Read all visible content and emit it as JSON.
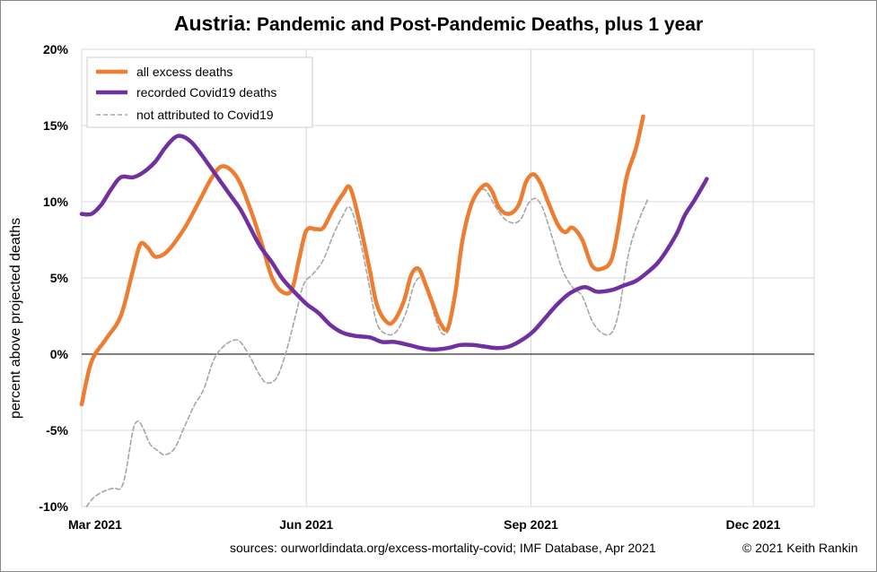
{
  "title": {
    "country": "Austria",
    "rest": ": Pandemic and Post-Pandemic Deaths, plus 1 year"
  },
  "footer": {
    "sources": "sources:  ourworldindata.org/excess-mortality-covid;  IMF Database, Apr 2021",
    "copyright": "© 2021 Keith Rankin"
  },
  "chart_data": {
    "type": "line",
    "ylabel": "percent above projected deaths",
    "ylim": [
      -10,
      20
    ],
    "yticks": [
      {
        "value": 20,
        "label": "20%"
      },
      {
        "value": 15,
        "label": "15%"
      },
      {
        "value": 10,
        "label": "10%"
      },
      {
        "value": 5,
        "label": "5%"
      },
      {
        "value": 0,
        "label": "0%"
      },
      {
        "value": -5,
        "label": "-5%"
      },
      {
        "value": -10,
        "label": "-10%"
      }
    ],
    "xlim": [
      0,
      300
    ],
    "xticks": [
      {
        "value": 0,
        "label": "Mar 2021"
      },
      {
        "value": 92,
        "label": "Jun 2021"
      },
      {
        "value": 184,
        "label": "Sep 2021"
      },
      {
        "value": 275,
        "label": "Dec 2021"
      }
    ],
    "grid": true,
    "legend_position": "top-left",
    "series": [
      {
        "name": "all excess deaths",
        "color": "#ED7D31",
        "style": "solid",
        "points": [
          [
            0,
            -3.3
          ],
          [
            4,
            -0.5
          ],
          [
            10,
            1
          ],
          [
            16,
            2.5
          ],
          [
            21,
            5.5
          ],
          [
            24,
            7.2
          ],
          [
            27,
            7
          ],
          [
            30,
            6.4
          ],
          [
            34,
            6.6
          ],
          [
            38,
            7.3
          ],
          [
            43,
            8.5
          ],
          [
            49,
            10.3
          ],
          [
            53,
            11.5
          ],
          [
            57,
            12.3
          ],
          [
            61,
            12.1
          ],
          [
            65,
            11.2
          ],
          [
            70,
            9.1
          ],
          [
            74,
            7.1
          ],
          [
            78,
            5
          ],
          [
            82,
            4.1
          ],
          [
            86,
            4.2
          ],
          [
            89,
            6.2
          ],
          [
            92,
            8.1
          ],
          [
            96,
            8.2
          ],
          [
            99,
            8.3
          ],
          [
            103,
            9.5
          ],
          [
            107,
            10.5
          ],
          [
            110,
            10.9
          ],
          [
            114,
            8.5
          ],
          [
            118,
            5.5
          ],
          [
            121,
            3.2
          ],
          [
            125,
            2.1
          ],
          [
            128,
            2.2
          ],
          [
            132,
            3.5
          ],
          [
            135,
            5.2
          ],
          [
            138,
            5.6
          ],
          [
            141,
            4.5
          ],
          [
            144,
            3.2
          ],
          [
            147,
            2
          ],
          [
            150,
            1.7
          ],
          [
            153,
            4
          ],
          [
            156,
            7.5
          ],
          [
            160,
            10
          ],
          [
            165,
            11.1
          ],
          [
            168,
            10.7
          ],
          [
            171,
            9.6
          ],
          [
            175,
            9.2
          ],
          [
            179,
            9.8
          ],
          [
            182,
            11.3
          ],
          [
            185,
            11.8
          ],
          [
            188,
            11.2
          ],
          [
            191,
            10
          ],
          [
            195,
            8.5
          ],
          [
            198,
            8
          ],
          [
            201,
            8.3
          ],
          [
            205,
            7.5
          ],
          [
            209,
            5.8
          ],
          [
            213,
            5.6
          ],
          [
            217,
            6.2
          ],
          [
            220,
            8.5
          ],
          [
            223,
            11.5
          ],
          [
            227,
            13.5
          ],
          [
            230,
            15.6
          ]
        ]
      },
      {
        "name": "recorded Covid19 deaths",
        "color": "#7030A0",
        "style": "solid",
        "points": [
          [
            0,
            9.2
          ],
          [
            4,
            9.2
          ],
          [
            8,
            9.8
          ],
          [
            12,
            10.8
          ],
          [
            16,
            11.6
          ],
          [
            21,
            11.6
          ],
          [
            25,
            11.9
          ],
          [
            30,
            12.6
          ],
          [
            34,
            13.5
          ],
          [
            38,
            14.2
          ],
          [
            41,
            14.3
          ],
          [
            45,
            13.9
          ],
          [
            49,
            13.1
          ],
          [
            53,
            12.2
          ],
          [
            57,
            11.3
          ],
          [
            61,
            10.4
          ],
          [
            65,
            9.5
          ],
          [
            69,
            8.3
          ],
          [
            73,
            7.1
          ],
          [
            78,
            6
          ],
          [
            82,
            5
          ],
          [
            87,
            4.1
          ],
          [
            92,
            3.3
          ],
          [
            97,
            2.7
          ],
          [
            102,
            1.9
          ],
          [
            107,
            1.4
          ],
          [
            112,
            1.2
          ],
          [
            118,
            1.1
          ],
          [
            123,
            0.8
          ],
          [
            128,
            0.8
          ],
          [
            134,
            0.6
          ],
          [
            139,
            0.4
          ],
          [
            144,
            0.3
          ],
          [
            150,
            0.4
          ],
          [
            155,
            0.6
          ],
          [
            160,
            0.6
          ],
          [
            165,
            0.5
          ],
          [
            170,
            0.4
          ],
          [
            175,
            0.5
          ],
          [
            180,
            0.9
          ],
          [
            185,
            1.5
          ],
          [
            190,
            2.4
          ],
          [
            195,
            3.3
          ],
          [
            200,
            4
          ],
          [
            206,
            4.4
          ],
          [
            211,
            4.1
          ],
          [
            217,
            4.2
          ],
          [
            222,
            4.5
          ],
          [
            227,
            4.8
          ],
          [
            232,
            5.4
          ],
          [
            236,
            6
          ],
          [
            240,
            6.9
          ],
          [
            244,
            8
          ],
          [
            247,
            9.1
          ],
          [
            251,
            10.1
          ],
          [
            255,
            11.2
          ],
          [
            256,
            11.5
          ]
        ]
      },
      {
        "name": "not attributed to Covid19",
        "color": "#A6A6A6",
        "style": "dashed",
        "points": [
          [
            2,
            -10
          ],
          [
            5,
            -9.4
          ],
          [
            9,
            -9
          ],
          [
            13,
            -8.8
          ],
          [
            16,
            -8.8
          ],
          [
            18,
            -7.8
          ],
          [
            21,
            -5
          ],
          [
            23,
            -4.4
          ],
          [
            25,
            -4.8
          ],
          [
            28,
            -5.9
          ],
          [
            31,
            -6.3
          ],
          [
            34,
            -6.6
          ],
          [
            38,
            -6.2
          ],
          [
            42,
            -4.8
          ],
          [
            46,
            -3.4
          ],
          [
            50,
            -2.3
          ],
          [
            54,
            -0.4
          ],
          [
            58,
            0.5
          ],
          [
            62,
            0.9
          ],
          [
            65,
            0.8
          ],
          [
            69,
            -0.2
          ],
          [
            73,
            -1.4
          ],
          [
            76,
            -1.9
          ],
          [
            80,
            -1.5
          ],
          [
            84,
            0.3
          ],
          [
            88,
            2.8
          ],
          [
            91,
            4.6
          ],
          [
            95,
            5.3
          ],
          [
            99,
            6.2
          ],
          [
            103,
            7.8
          ],
          [
            107,
            9.1
          ],
          [
            110,
            9.6
          ],
          [
            114,
            7.5
          ],
          [
            118,
            4.3
          ],
          [
            121,
            2
          ],
          [
            125,
            1.3
          ],
          [
            129,
            1.5
          ],
          [
            133,
            2.8
          ],
          [
            136,
            4.5
          ],
          [
            139,
            5
          ],
          [
            142,
            4
          ],
          [
            145,
            2.3
          ],
          [
            148,
            1.3
          ],
          [
            151,
            2
          ],
          [
            154,
            5.6
          ],
          [
            157,
            8.5
          ],
          [
            161,
            10.3
          ],
          [
            165,
            10.8
          ],
          [
            169,
            9.8
          ],
          [
            173,
            8.9
          ],
          [
            177,
            8.6
          ],
          [
            180,
            8.9
          ],
          [
            183,
            9.9
          ],
          [
            186,
            10.2
          ],
          [
            189,
            9.5
          ],
          [
            193,
            7.5
          ],
          [
            197,
            5.5
          ],
          [
            201,
            4.4
          ],
          [
            205,
            3.8
          ],
          [
            209,
            2.2
          ],
          [
            213,
            1.4
          ],
          [
            217,
            1.4
          ],
          [
            220,
            2.8
          ],
          [
            224,
            6.6
          ],
          [
            228,
            8.7
          ],
          [
            232,
            10.2
          ]
        ]
      }
    ]
  }
}
